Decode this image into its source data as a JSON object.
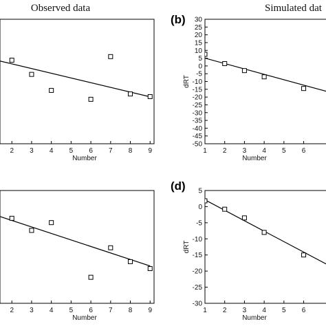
{
  "headers": {
    "left": "Observed data",
    "right": "Simulated dat"
  },
  "chart_data": [
    {
      "id": "a",
      "type": "scatter",
      "panel_label": "",
      "xlabel": "Number",
      "ylabel": "",
      "xlim": [
        1.4,
        9.2
      ],
      "ylim": [
        -35,
        35
      ],
      "xticks": [
        2,
        3,
        4,
        5,
        6,
        7,
        8,
        9
      ],
      "yticks": [],
      "points": {
        "x": [
          2,
          3,
          4,
          6,
          7,
          8,
          9
        ],
        "y": [
          12,
          4,
          -5,
          -10,
          14,
          -7,
          -8.5
        ]
      },
      "fit": {
        "x": [
          1.4,
          9
        ],
        "y": [
          11.5,
          -8.6
        ]
      }
    },
    {
      "id": "b",
      "type": "scatter",
      "panel_label": "(b)",
      "xlabel": "Number",
      "ylabel": "dRT",
      "xlim": [
        1,
        7.2
      ],
      "ylim": [
        -50,
        30
      ],
      "xticks": [
        1,
        2,
        3,
        4,
        5,
        6
      ],
      "yticks": [
        30,
        25,
        20,
        15,
        10,
        5,
        0,
        -5,
        -10,
        -15,
        -20,
        -25,
        -30,
        -35,
        -40,
        -45,
        -50
      ],
      "points": {
        "x": [
          1,
          2,
          3,
          4,
          6
        ],
        "y": [
          7.5,
          1.5,
          -3,
          -7,
          -14.5
        ]
      },
      "fit": {
        "x": [
          1,
          7.2
        ],
        "y": [
          5,
          -16.5
        ]
      }
    },
    {
      "id": "c",
      "type": "scatter",
      "panel_label": "",
      "xlabel": "Number",
      "ylabel": "",
      "xlim": [
        1.4,
        9.2
      ],
      "ylim": [
        -35,
        30
      ],
      "xticks": [
        2,
        3,
        4,
        5,
        6,
        7,
        8,
        9
      ],
      "yticks": [],
      "points": {
        "x": [
          2,
          3,
          4,
          6,
          7,
          8,
          9
        ],
        "y": [
          14,
          7,
          11.5,
          -20,
          -3,
          -11,
          -15
        ]
      },
      "fit": {
        "x": [
          1.4,
          9
        ],
        "y": [
          15,
          -13.5
        ]
      }
    },
    {
      "id": "d",
      "type": "scatter",
      "panel_label": "(d)",
      "xlabel": "Number",
      "ylabel": "dRT",
      "xlim": [
        1,
        7.2
      ],
      "ylim": [
        -30,
        5
      ],
      "xticks": [
        1,
        2,
        3,
        4,
        5,
        6
      ],
      "yticks": [
        5,
        0,
        -5,
        -10,
        -15,
        -20,
        -25,
        -30
      ],
      "points": {
        "x": [
          1,
          2,
          3,
          4,
          6
        ],
        "y": [
          1.8,
          -0.8,
          -3.5,
          -8,
          -15
        ]
      },
      "fit": {
        "x": [
          1,
          7.2
        ],
        "y": [
          2.1,
          -18
        ]
      }
    }
  ]
}
